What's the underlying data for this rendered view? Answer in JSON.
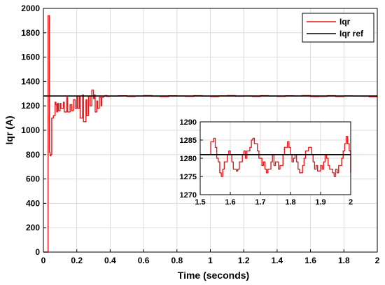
{
  "chart_data": [
    {
      "type": "line",
      "xlabel": "Time (seconds)",
      "ylabel": "Iqr (A)",
      "xlim": [
        0,
        2
      ],
      "ylim": [
        0,
        2000
      ],
      "xticks": [
        0,
        0.2,
        0.4,
        0.6,
        0.8,
        1,
        1.2,
        1.4,
        1.6,
        1.8,
        2
      ],
      "yticks": [
        0,
        200,
        400,
        600,
        800,
        1000,
        1200,
        1400,
        1600,
        1800,
        2000
      ],
      "grid": true,
      "legend_position": "top-right",
      "series": [
        {
          "name": "Iqr",
          "color": "#e8191c",
          "x": [
            0.0,
            0.025,
            0.028,
            0.033,
            0.036,
            0.04,
            0.045,
            0.05,
            0.06,
            0.07,
            0.075,
            0.08,
            0.085,
            0.09,
            0.1,
            0.105,
            0.12,
            0.125,
            0.14,
            0.145,
            0.16,
            0.17,
            0.18,
            0.19,
            0.2,
            0.205,
            0.215,
            0.22,
            0.235,
            0.24,
            0.255,
            0.26,
            0.27,
            0.28,
            0.29,
            0.3,
            0.305,
            0.31,
            0.32,
            0.325,
            0.335,
            0.345,
            0.35,
            0.36,
            0.37,
            0.38,
            0.4,
            0.45,
            0.5,
            0.55,
            0.6,
            0.65,
            0.7,
            0.75,
            0.8,
            0.85,
            0.9,
            0.95,
            1.0,
            1.05,
            1.1,
            1.15,
            1.2,
            1.25,
            1.3,
            1.35,
            1.4,
            1.45,
            1.5,
            1.55,
            1.6,
            1.65,
            1.7,
            1.75,
            1.8,
            1.85,
            1.9,
            1.95,
            2.0
          ],
          "y": [
            0,
            0,
            1940,
            1940,
            820,
            790,
            800,
            1100,
            1120,
            1230,
            1210,
            1150,
            1220,
            1160,
            1220,
            1180,
            1230,
            1150,
            1270,
            1150,
            1210,
            1160,
            1250,
            1180,
            1280,
            1180,
            1280,
            1100,
            1290,
            1070,
            1250,
            1120,
            1280,
            1200,
            1330,
            1260,
            1290,
            1150,
            1240,
            1180,
            1270,
            1200,
            1270,
            1280,
            1285,
            1278,
            1280,
            1283,
            1277,
            1281,
            1285,
            1279,
            1276,
            1283,
            1281,
            1278,
            1284,
            1280,
            1276,
            1282,
            1285,
            1279,
            1281,
            1277,
            1284,
            1280,
            1278,
            1283,
            1281,
            1285,
            1276,
            1278,
            1284,
            1277,
            1282,
            1280,
            1279,
            1275,
            1282
          ]
        },
        {
          "name": "Iqr ref",
          "color": "#000000",
          "x": [
            0,
            2
          ],
          "y": [
            1281,
            1281
          ]
        }
      ]
    },
    {
      "type": "line",
      "xlim": [
        1.5,
        2
      ],
      "ylim": [
        1270,
        1290
      ],
      "xticks": [
        1.5,
        1.6,
        1.7,
        1.8,
        1.9,
        2
      ],
      "yticks": [
        1270,
        1275,
        1280,
        1285,
        1290
      ],
      "grid": true,
      "series": [
        {
          "color": "#e8191c",
          "x": [
            1.5,
            1.53,
            1.535,
            1.545,
            1.55,
            1.555,
            1.56,
            1.565,
            1.57,
            1.575,
            1.58,
            1.59,
            1.595,
            1.6,
            1.605,
            1.61,
            1.62,
            1.625,
            1.63,
            1.64,
            1.645,
            1.65,
            1.655,
            1.665,
            1.67,
            1.675,
            1.68,
            1.69,
            1.695,
            1.705,
            1.71,
            1.715,
            1.72,
            1.725,
            1.735,
            1.74,
            1.745,
            1.75,
            1.76,
            1.765,
            1.775,
            1.78,
            1.79,
            1.795,
            1.8,
            1.805,
            1.81,
            1.815,
            1.82,
            1.825,
            1.83,
            1.84,
            1.845,
            1.85,
            1.86,
            1.87,
            1.875,
            1.88,
            1.885,
            1.89,
            1.9,
            1.905,
            1.91,
            1.915,
            1.92,
            1.925,
            1.93,
            1.94,
            1.945,
            1.95,
            1.955,
            1.96,
            1.97,
            1.975,
            1.98,
            1.985,
            1.99,
            1.995,
            2.0
          ],
          "y": [
            1281,
            1281,
            1284.5,
            1285.5,
            1283,
            1280,
            1279,
            1276,
            1275,
            1277,
            1279,
            1281,
            1282,
            1281,
            1279,
            1277,
            1276.5,
            1277,
            1279,
            1281,
            1282,
            1280,
            1282,
            1283,
            1285,
            1285.5,
            1284,
            1282,
            1280,
            1278,
            1279,
            1277,
            1276,
            1277,
            1279,
            1281,
            1278,
            1279,
            1277,
            1278,
            1281,
            1283,
            1284.5,
            1283,
            1281,
            1279,
            1280,
            1281,
            1279,
            1277,
            1276,
            1278,
            1280,
            1282,
            1283,
            1281,
            1279,
            1277,
            1278,
            1276.5,
            1278,
            1277,
            1279,
            1281,
            1280,
            1278,
            1277,
            1276,
            1275,
            1277,
            1276,
            1278,
            1280,
            1282,
            1284,
            1286,
            1284,
            1282,
            1276
          ]
        },
        {
          "color": "#000000",
          "x": [
            1.5,
            2
          ],
          "y": [
            1281,
            1281
          ]
        }
      ]
    }
  ]
}
